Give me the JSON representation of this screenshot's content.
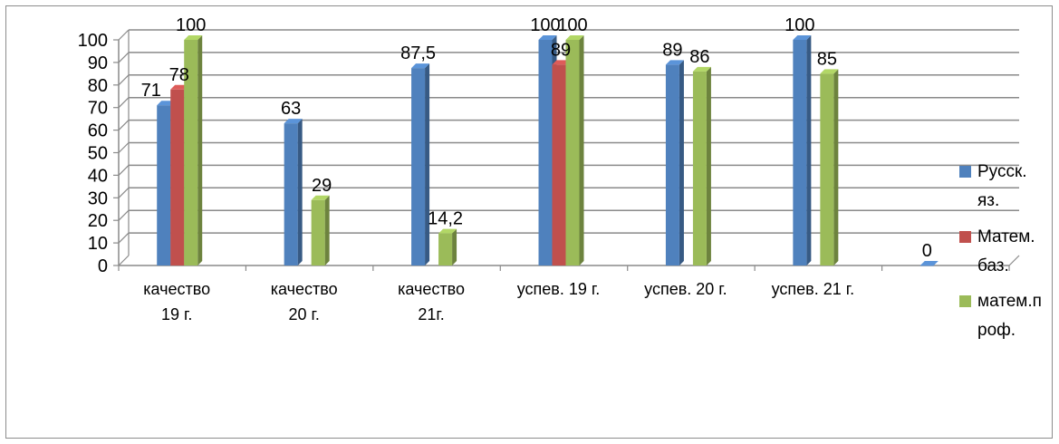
{
  "chart_data": {
    "type": "bar",
    "title": "",
    "xlabel": "",
    "ylabel": "",
    "ylim": [
      0,
      100
    ],
    "yticks": [
      0,
      10,
      20,
      30,
      40,
      50,
      60,
      70,
      80,
      90,
      100
    ],
    "grid": true,
    "legend_position": "right",
    "categories": [
      [
        "качество",
        "19 г."
      ],
      [
        "качество",
        "20 г."
      ],
      [
        "качество",
        "21г."
      ],
      [
        "успев. 19 г."
      ],
      [
        "успев. 20 г."
      ],
      [
        "успев. 21 г."
      ],
      [
        ""
      ]
    ],
    "series": [
      {
        "name": [
          "Русск.",
          "яз."
        ],
        "color": "#4F81BD",
        "values": [
          71,
          63,
          87.5,
          100,
          89,
          100,
          0
        ],
        "labels": [
          "71",
          "63",
          "87,5",
          "100",
          "89",
          "100",
          "0"
        ]
      },
      {
        "name": [
          "Матем.",
          "баз."
        ],
        "color": "#C0504D",
        "values": [
          78,
          null,
          null,
          89,
          null,
          null,
          null
        ],
        "labels": [
          "78",
          "",
          "",
          "89",
          "",
          "",
          ""
        ]
      },
      {
        "name": [
          "матем.п",
          "роф."
        ],
        "color": "#9BBB59",
        "values": [
          100,
          29,
          14.2,
          100,
          86,
          85,
          null
        ],
        "labels": [
          "100",
          "29",
          "14,2",
          "100",
          "86",
          "85",
          ""
        ]
      }
    ]
  }
}
